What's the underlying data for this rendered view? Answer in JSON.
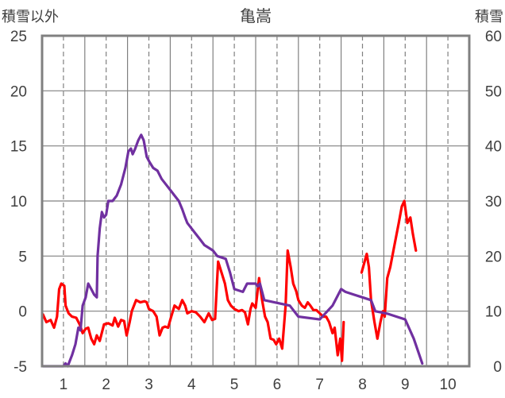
{
  "chart_data": {
    "type": "line",
    "title": "亀嵩",
    "left_axis_label": "積雪以外",
    "right_axis_label": "積雪",
    "x_ticks": [
      "1",
      "2",
      "3",
      "4",
      "5",
      "6",
      "7",
      "8",
      "9",
      "10"
    ],
    "xlim": [
      0.5,
      10.5
    ],
    "y_left_ticks": [
      "25",
      "20",
      "15",
      "10",
      "5",
      "0",
      "-5"
    ],
    "y_left_lim": [
      -5,
      25
    ],
    "y_right_ticks": [
      "60",
      "50",
      "40",
      "30",
      "20",
      "10",
      "0"
    ],
    "y_right_lim": [
      0,
      60
    ],
    "grid": true,
    "colors": {
      "red_series": "#ff0000",
      "purple_series": "#7030a0",
      "grid": "#808080",
      "frame": "#808080"
    },
    "series": [
      {
        "axis": "left",
        "color": "#ff0000",
        "segments": [
          [
            [
              0.52,
              -0.3
            ],
            [
              0.6,
              -1
            ],
            [
              0.7,
              -0.8
            ],
            [
              0.78,
              -1.5
            ],
            [
              0.85,
              -0.5
            ],
            [
              0.9,
              2
            ],
            [
              0.95,
              2.5
            ],
            [
              1.02,
              2.3
            ],
            [
              1.05,
              0.5
            ],
            [
              1.12,
              -0.2
            ],
            [
              1.2,
              -0.5
            ],
            [
              1.3,
              -0.6
            ],
            [
              1.38,
              -1.2
            ],
            [
              1.45,
              -2
            ],
            [
              1.52,
              -1.6
            ],
            [
              1.58,
              -1.5
            ],
            [
              1.65,
              -2.5
            ],
            [
              1.72,
              -3
            ],
            [
              1.78,
              -2.2
            ],
            [
              1.85,
              -2.7
            ],
            [
              1.95,
              -1.2
            ],
            [
              2.05,
              -1.1
            ],
            [
              2.15,
              -1.3
            ],
            [
              2.2,
              -0.6
            ],
            [
              2.28,
              -1.4
            ],
            [
              2.35,
              -0.8
            ],
            [
              2.42,
              -0.9
            ],
            [
              2.48,
              -2.2
            ],
            [
              2.55,
              -1
            ],
            [
              2.6,
              0
            ],
            [
              2.7,
              1
            ],
            [
              2.8,
              0.8
            ],
            [
              2.9,
              0.9
            ],
            [
              2.95,
              0.8
            ],
            [
              3.0,
              0.2
            ],
            [
              3.1,
              0
            ],
            [
              3.18,
              -0.5
            ],
            [
              3.25,
              -2.2
            ],
            [
              3.32,
              -1.5
            ],
            [
              3.38,
              -1.4
            ],
            [
              3.45,
              -1.5
            ],
            [
              3.5,
              -0.8
            ],
            [
              3.6,
              0.5
            ],
            [
              3.7,
              0.2
            ],
            [
              3.78,
              1
            ],
            [
              3.85,
              0.5
            ],
            [
              3.9,
              -0.2
            ],
            [
              4.0,
              0
            ],
            [
              4.1,
              -0.1
            ],
            [
              4.2,
              -0.5
            ],
            [
              4.3,
              -1
            ],
            [
              4.4,
              -0.2
            ],
            [
              4.48,
              -0.8
            ],
            [
              4.55,
              -0.7
            ],
            [
              4.62,
              4.5
            ],
            [
              4.7,
              3.5
            ],
            [
              4.78,
              2.5
            ],
            [
              4.85,
              1
            ],
            [
              4.92,
              0.5
            ],
            [
              5.0,
              0.2
            ],
            [
              5.1,
              0
            ],
            [
              5.18,
              0.1
            ],
            [
              5.25,
              -0.1
            ],
            [
              5.32,
              -1.2
            ],
            [
              5.38,
              0.2
            ],
            [
              5.42,
              0.7
            ],
            [
              5.5,
              0.3
            ],
            [
              5.58,
              3
            ],
            [
              5.65,
              1
            ],
            [
              5.72,
              -0.5
            ],
            [
              5.78,
              -1
            ],
            [
              5.85,
              -2.5
            ],
            [
              5.92,
              -2.6
            ],
            [
              5.98,
              -3
            ],
            [
              6.05,
              -2.5
            ],
            [
              6.12,
              -3.4
            ],
            [
              6.2,
              0.5
            ],
            [
              6.25,
              5.5
            ],
            [
              6.32,
              4
            ],
            [
              6.38,
              2.5
            ],
            [
              6.45,
              1.8
            ],
            [
              6.5,
              1
            ],
            [
              6.58,
              0.5
            ],
            [
              6.65,
              0.3
            ],
            [
              6.72,
              0.8
            ],
            [
              6.78,
              0.5
            ],
            [
              6.85,
              0.1
            ],
            [
              6.92,
              0.1
            ],
            [
              7.0,
              -0.2
            ],
            [
              7.08,
              -0.5
            ],
            [
              7.15,
              -0.5
            ],
            [
              7.22,
              -1
            ],
            [
              7.3,
              -2
            ],
            [
              7.35,
              -1.5
            ],
            [
              7.42,
              -4
            ],
            [
              7.48,
              -2.5
            ],
            [
              7.52,
              -4.5
            ],
            [
              7.56,
              -1
            ]
          ],
          [
            [
              7.98,
              3.5
            ],
            [
              8.05,
              4.5
            ],
            [
              8.1,
              5.2
            ],
            [
              8.15,
              4
            ],
            [
              8.2,
              1
            ],
            [
              8.28,
              -1
            ],
            [
              8.35,
              -2.5
            ],
            [
              8.42,
              -1
            ],
            [
              8.48,
              0
            ],
            [
              8.52,
              -0.5
            ],
            [
              8.58,
              3
            ],
            [
              8.65,
              4
            ],
            [
              8.75,
              6
            ],
            [
              8.85,
              8
            ],
            [
              8.92,
              9.5
            ],
            [
              8.98,
              10
            ],
            [
              9.05,
              8
            ],
            [
              9.12,
              8.5
            ],
            [
              9.18,
              7
            ],
            [
              9.25,
              5.5
            ]
          ]
        ]
      },
      {
        "axis": "right",
        "color": "#7030a0",
        "segments": [
          [
            [
              0.52,
              0
            ],
            [
              0.9,
              0
            ],
            [
              1.0,
              0
            ],
            [
              1.05,
              0.5
            ],
            [
              1.1,
              0
            ],
            [
              1.2,
              2
            ],
            [
              1.28,
              4
            ],
            [
              1.35,
              7
            ],
            [
              1.4,
              6.5
            ],
            [
              1.45,
              11
            ],
            [
              1.52,
              12.5
            ],
            [
              1.58,
              15
            ],
            [
              1.65,
              14
            ],
            [
              1.72,
              13
            ],
            [
              1.78,
              12.5
            ],
            [
              1.8,
              20
            ],
            [
              1.85,
              25
            ],
            [
              1.9,
              28
            ],
            [
              1.95,
              27
            ],
            [
              2.0,
              27.5
            ],
            [
              2.05,
              30
            ],
            [
              2.15,
              30
            ],
            [
              2.25,
              31
            ],
            [
              2.35,
              33
            ],
            [
              2.45,
              36
            ],
            [
              2.52,
              39
            ],
            [
              2.58,
              39.5
            ],
            [
              2.62,
              38.5
            ],
            [
              2.68,
              39.5
            ],
            [
              2.75,
              41
            ],
            [
              2.82,
              42
            ],
            [
              2.88,
              41
            ],
            [
              2.95,
              38
            ],
            [
              3.02,
              37
            ],
            [
              3.1,
              36
            ],
            [
              3.2,
              35.5
            ],
            [
              3.3,
              34
            ],
            [
              3.4,
              33
            ],
            [
              3.5,
              32
            ],
            [
              3.6,
              31
            ],
            [
              3.7,
              30
            ],
            [
              3.78,
              28.5
            ],
            [
              3.85,
              27
            ],
            [
              3.9,
              26
            ],
            [
              4.0,
              25
            ],
            [
              4.1,
              24
            ],
            [
              4.2,
              23
            ],
            [
              4.3,
              22
            ],
            [
              4.4,
              21.5
            ],
            [
              4.5,
              21
            ],
            [
              4.6,
              20
            ],
            [
              4.8,
              19.5
            ],
            [
              4.9,
              17
            ],
            [
              5.0,
              14
            ],
            [
              5.2,
              13.5
            ],
            [
              5.3,
              15
            ],
            [
              5.5,
              15
            ],
            [
              5.55,
              14.5
            ],
            [
              5.6,
              15
            ],
            [
              5.7,
              12
            ],
            [
              6.3,
              11
            ],
            [
              6.5,
              9
            ],
            [
              7.0,
              8.5
            ],
            [
              7.3,
              11
            ],
            [
              7.5,
              14
            ],
            [
              7.6,
              13.5
            ],
            [
              7.8,
              13
            ],
            [
              8.0,
              12.5
            ],
            [
              8.2,
              12
            ],
            [
              8.3,
              10
            ],
            [
              8.6,
              9.5
            ],
            [
              8.8,
              9
            ],
            [
              9.0,
              8.5
            ],
            [
              9.2,
              5
            ],
            [
              9.4,
              0.5
            ]
          ]
        ]
      }
    ]
  }
}
